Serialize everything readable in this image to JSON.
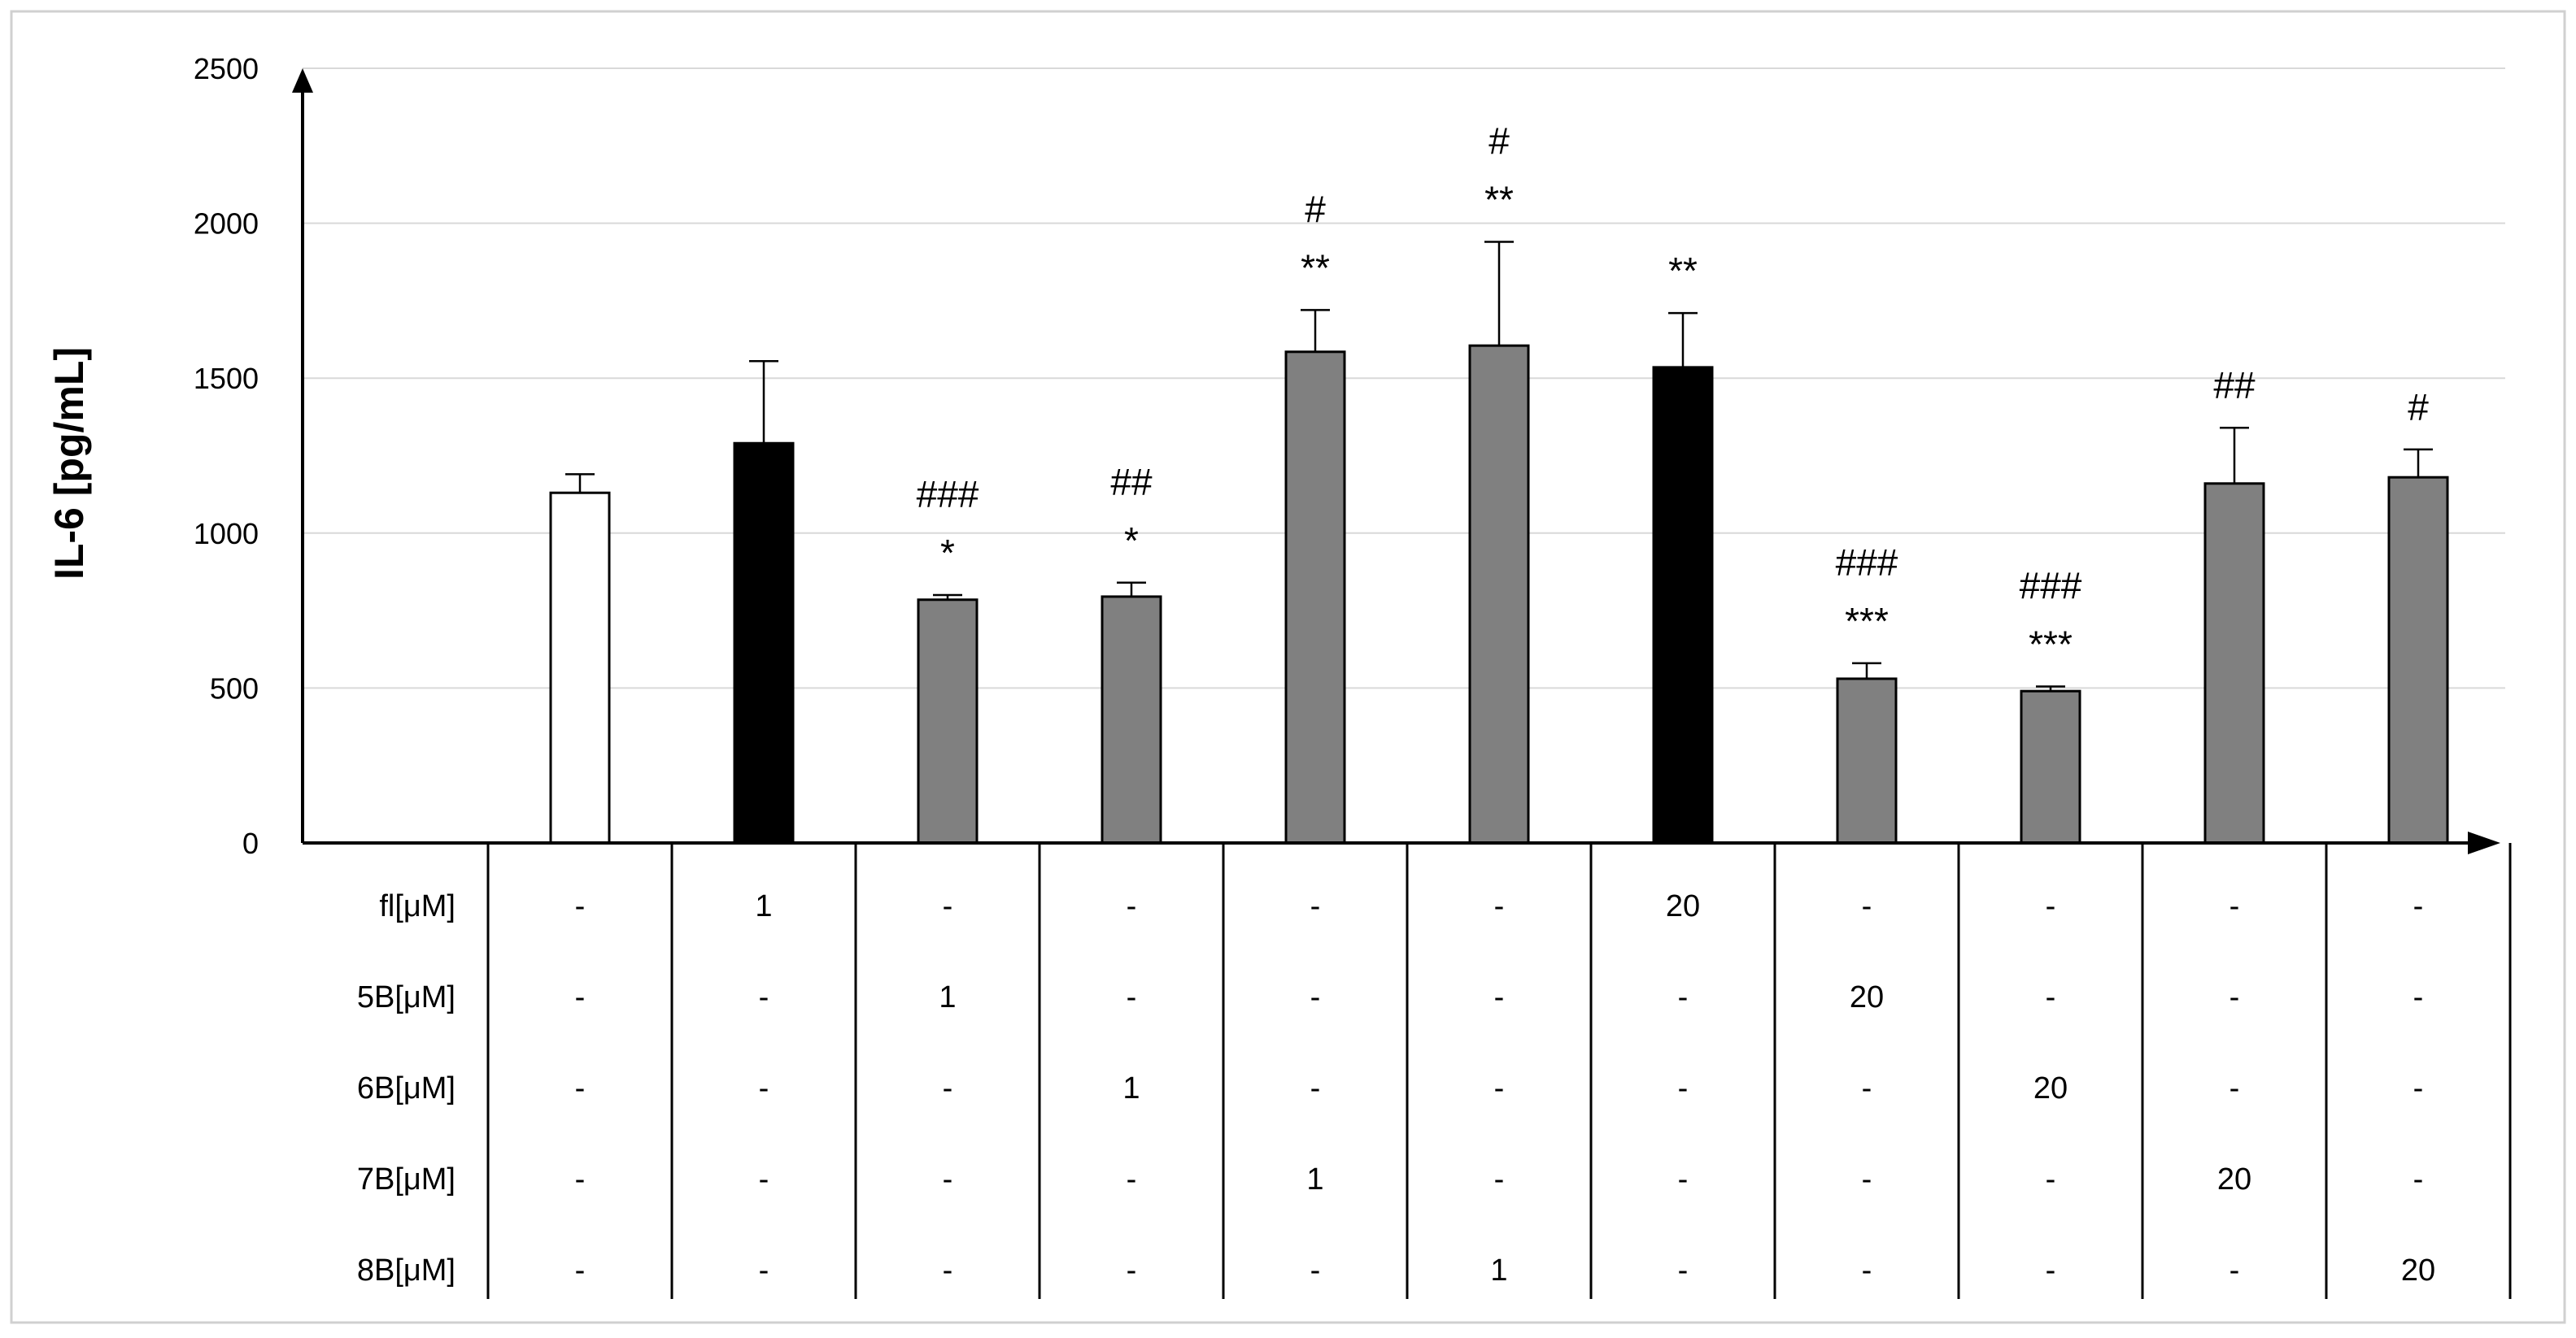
{
  "chart_data": {
    "type": "bar",
    "ylabel": "IL-6 [pg/mL]",
    "ylim": [
      0,
      2500
    ],
    "yticks": [
      0,
      500,
      1000,
      1500,
      2000,
      2500
    ],
    "grid": true,
    "legend": "none",
    "bar_colors": {
      "white": "#ffffff",
      "black": "#000000",
      "gray": "#808080"
    },
    "bars": [
      {
        "value": 1130,
        "error": 60,
        "color": "white",
        "sig_top": "",
        "sig_bottom": ""
      },
      {
        "value": 1290,
        "error": 265,
        "color": "black",
        "sig_top": "",
        "sig_bottom": ""
      },
      {
        "value": 785,
        "error": 15,
        "color": "gray",
        "sig_top": "###",
        "sig_bottom": "*"
      },
      {
        "value": 795,
        "error": 45,
        "color": "gray",
        "sig_top": "##",
        "sig_bottom": "*"
      },
      {
        "value": 1585,
        "error": 135,
        "color": "gray",
        "sig_top": "#",
        "sig_bottom": "**"
      },
      {
        "value": 1605,
        "error": 335,
        "color": "gray",
        "sig_top": "#",
        "sig_bottom": "**"
      },
      {
        "value": 1535,
        "error": 175,
        "color": "black",
        "sig_top": "",
        "sig_bottom": "**"
      },
      {
        "value": 530,
        "error": 50,
        "color": "gray",
        "sig_top": "###",
        "sig_bottom": "***"
      },
      {
        "value": 490,
        "error": 15,
        "color": "gray",
        "sig_top": "###",
        "sig_bottom": "***"
      },
      {
        "value": 1160,
        "error": 180,
        "color": "gray",
        "sig_top": "",
        "sig_bottom": "##"
      },
      {
        "value": 1180,
        "error": 90,
        "color": "gray",
        "sig_top": "",
        "sig_bottom": "#"
      }
    ],
    "table": [
      {
        "label": "fl[μM]",
        "cells": [
          "-",
          "1",
          "-",
          "-",
          "-",
          "-",
          "20",
          "-",
          "-",
          "-",
          "-"
        ]
      },
      {
        "label": "5B[μM]",
        "cells": [
          "-",
          "-",
          "1",
          "-",
          "-",
          "-",
          "-",
          "20",
          "-",
          "-",
          "-"
        ]
      },
      {
        "label": "6B[μM]",
        "cells": [
          "-",
          "-",
          "-",
          "1",
          "-",
          "-",
          "-",
          "-",
          "20",
          "-",
          "-"
        ]
      },
      {
        "label": "7B[μM]",
        "cells": [
          "-",
          "-",
          "-",
          "-",
          "1",
          "-",
          "-",
          "-",
          "-",
          "20",
          "-"
        ]
      },
      {
        "label": "8B[μM]",
        "cells": [
          "-",
          "-",
          "-",
          "-",
          "-",
          "1",
          "-",
          "-",
          "-",
          "-",
          "20"
        ]
      }
    ]
  }
}
